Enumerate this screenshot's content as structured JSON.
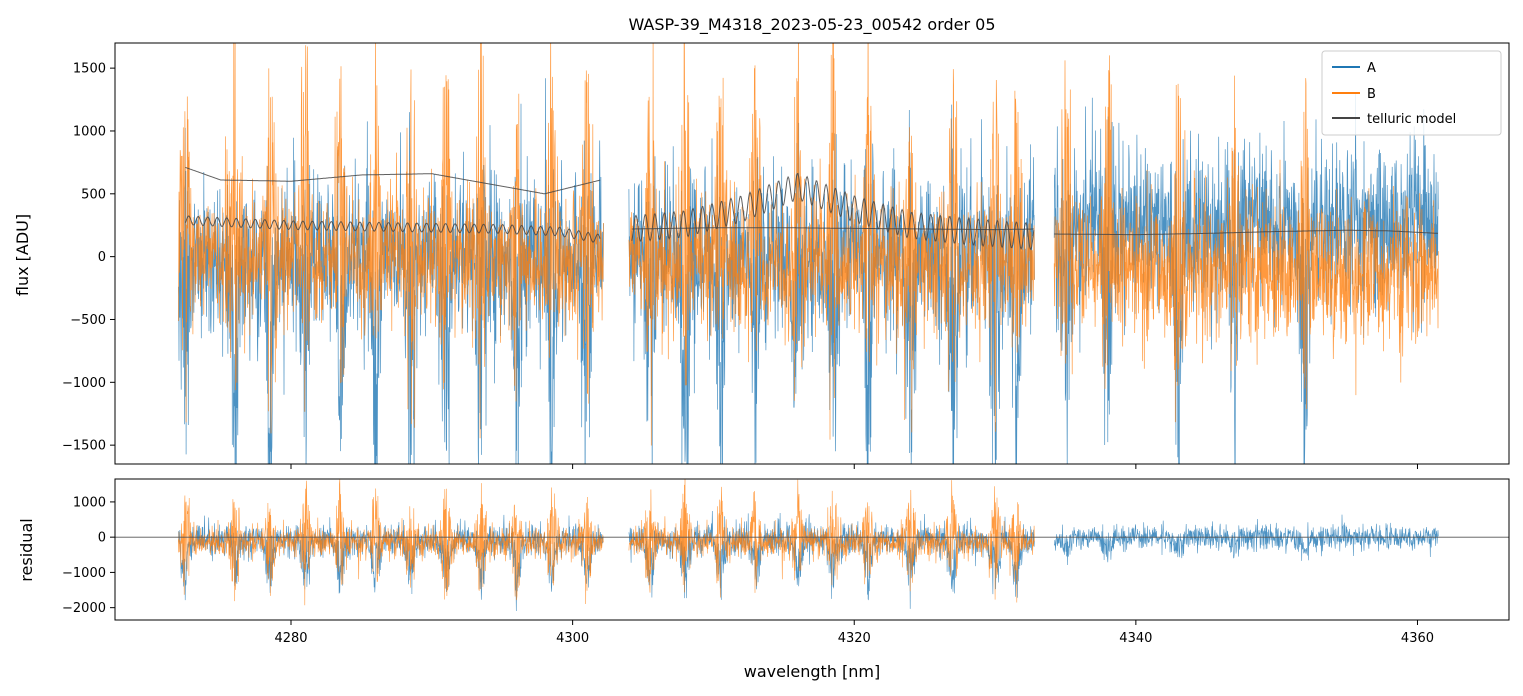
{
  "chart_data": [
    {
      "type": "line",
      "panel": "main",
      "title": "WASP-39_M4318_2023-05-23_00542  order 05",
      "xlabel": "",
      "ylabel": "flux [ADU]",
      "xlim": [
        4267.5,
        4366.5
      ],
      "ylim": [
        -1650,
        1700
      ],
      "x_ticks": [
        4280,
        4300,
        4320,
        4340,
        4360
      ],
      "y_ticks": [
        -1500,
        -1000,
        -500,
        0,
        500,
        1000,
        1500
      ],
      "y_tick_labels": [
        "−1500",
        "−1000",
        "−500",
        "0",
        "500",
        "1000",
        "1500"
      ],
      "legend_position": "top-right",
      "segments": [
        [
          4272.0,
          4302.2
        ],
        [
          4304.0,
          4332.8
        ],
        [
          4334.2,
          4361.5
        ]
      ],
      "series": [
        {
          "name": "A",
          "color": "#1f77b4",
          "baseline": [
            [
              4272.0,
              0
            ],
            [
              4302.2,
              0
            ],
            [
              4304.0,
              0
            ],
            [
              4332.8,
              50
            ],
            [
              4334.2,
              250
            ],
            [
              4361.5,
              250
            ]
          ],
          "noise": 400
        },
        {
          "name": "B",
          "color": "#ff7f0e",
          "baseline": [
            [
              4272.0,
              0
            ],
            [
              4302.2,
              -50
            ],
            [
              4304.0,
              -50
            ],
            [
              4332.8,
              -100
            ],
            [
              4334.2,
              -80
            ],
            [
              4361.5,
              -150
            ]
          ],
          "noise": 350
        },
        {
          "name": "telluric model",
          "color": "#444444",
          "curves": [
            {
              "x": [
                4272.5,
                4275,
                4280,
                4285,
                4290,
                4295,
                4298,
                4302
              ],
              "y": [
                710,
                610,
                600,
                650,
                660,
                560,
                500,
                610
              ]
            },
            {
              "x": [
                4272.5,
                4276,
                4280,
                4285,
                4290,
                4295,
                4299,
                4302
              ],
              "y": [
                290,
                270,
                250,
                240,
                230,
                220,
                200,
                140
              ]
            },
            {
              "x": [
                4304.2,
                4308,
                4312,
                4316,
                4320,
                4324,
                4328,
                4332.8
              ],
              "y": [
                220,
                260,
                380,
                560,
                380,
                250,
                200,
                160
              ]
            },
            {
              "x": [
                4304.2,
                4310,
                4315,
                4320,
                4325,
                4330,
                4332.8
              ],
              "y": [
                220,
                230,
                230,
                225,
                220,
                215,
                220
              ]
            },
            {
              "x": [
                4334.2,
                4340,
                4345,
                4350,
                4355,
                4358,
                4361.5
              ],
              "y": [
                180,
                175,
                185,
                200,
                210,
                205,
                185
              ]
            }
          ]
        }
      ],
      "absorption_lines": [
        4272.5,
        4276,
        4278.5,
        4281,
        4283.5,
        4286,
        4288.5,
        4291,
        4293.5,
        4296,
        4298.5,
        4301,
        4305.5,
        4308,
        4310.5,
        4313,
        4316,
        4318.5,
        4321,
        4324,
        4327,
        4330,
        4331.5,
        4335,
        4338,
        4343,
        4347,
        4352
      ]
    },
    {
      "type": "line",
      "panel": "residual",
      "xlabel": "wavelength [nm]",
      "ylabel": "residual",
      "xlim": [
        4267.5,
        4366.5
      ],
      "ylim": [
        -2350,
        1650
      ],
      "x_ticks": [
        4280,
        4300,
        4320,
        4340,
        4360
      ],
      "y_ticks": [
        -2000,
        -1000,
        0,
        1000
      ],
      "y_tick_labels": [
        "−2000",
        "−1000",
        "0",
        "1000"
      ],
      "zero_line": 0,
      "series": [
        {
          "name": "A",
          "color": "#1f77b4",
          "noise": 300
        },
        {
          "name": "B",
          "color": "#ff7f0e",
          "noise": 280
        }
      ]
    }
  ]
}
